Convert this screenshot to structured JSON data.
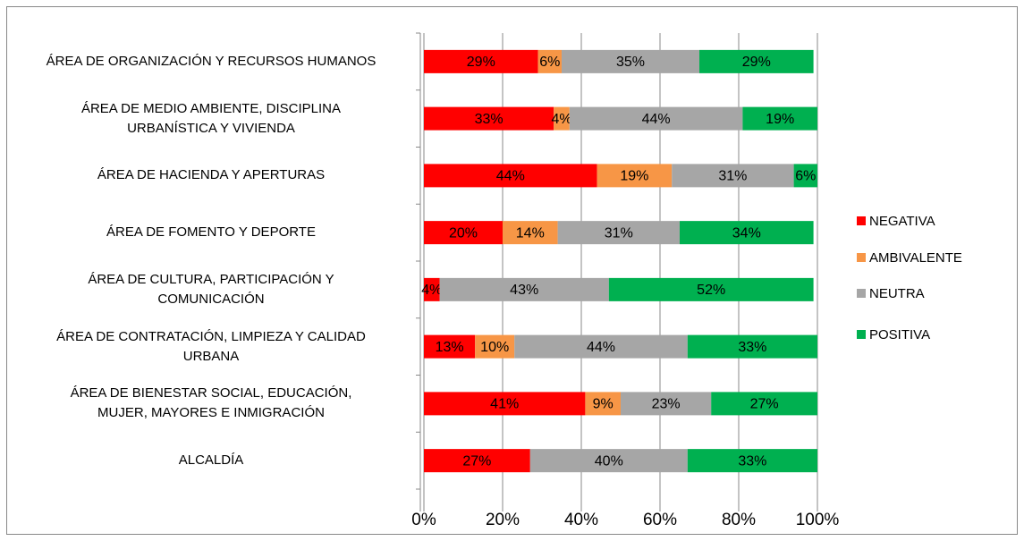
{
  "chart_data": {
    "type": "stacked-bar-horizontal",
    "categories": [
      "ÁREA DE ORGANIZACIÓN Y RECURSOS HUMANOS",
      "ÁREA DE MEDIO AMBIENTE, DISCIPLINA\nURBANÍSTICA Y VIVIENDA",
      "ÁREA DE HACIENDA Y APERTURAS",
      "ÁREA DE FOMENTO Y DEPORTE",
      "ÁREA DE CULTURA, PARTICIPACIÓN Y\nCOMUNICACIÓN",
      "ÁREA DE CONTRATACIÓN, LIMPIEZA Y CALIDAD\nURBANA",
      "ÁREA DE BIENESTAR SOCIAL, EDUCACIÓN,\nMUJER, MAYORES E INMIGRACIÓN",
      "ALCALDÍA"
    ],
    "series": [
      {
        "name": "NEGATIVA",
        "color": "#ff0000",
        "values": [
          29,
          33,
          44,
          20,
          4,
          13,
          41,
          27
        ],
        "value_labels": [
          "29%",
          "33%",
          "44%",
          "20%",
          "4%",
          "13%",
          "41%",
          "27%"
        ]
      },
      {
        "name": "AMBIVALENTE",
        "color": "#f79646",
        "values": [
          6,
          4,
          19,
          14,
          null,
          10,
          9,
          null
        ],
        "value_labels": [
          "6%",
          "4%",
          "19%",
          "14%",
          null,
          "10%",
          "9%",
          null
        ]
      },
      {
        "name": "NEUTRA",
        "color": "#a6a6a6",
        "values": [
          35,
          44,
          31,
          31,
          43,
          44,
          23,
          40
        ],
        "value_labels": [
          "35%",
          "44%",
          "31%",
          "31%",
          "43%",
          "44%",
          "23%",
          "40%"
        ]
      },
      {
        "name": "POSITIVA",
        "color": "#00b050",
        "values": [
          29,
          19,
          6,
          34,
          52,
          33,
          27,
          33
        ],
        "value_labels": [
          "29%",
          "19%",
          "6%",
          "34%",
          "52%",
          "33%",
          "27%",
          "33%"
        ]
      }
    ],
    "xlim": [
      0,
      100
    ],
    "xticks": [
      {
        "value": 0,
        "label": "0%"
      },
      {
        "value": 20,
        "label": "20%"
      },
      {
        "value": 40,
        "label": "40%"
      },
      {
        "value": 60,
        "label": "60%"
      },
      {
        "value": 80,
        "label": "80%"
      },
      {
        "value": 100,
        "label": "100%"
      }
    ],
    "grid": true,
    "legend": "right"
  }
}
